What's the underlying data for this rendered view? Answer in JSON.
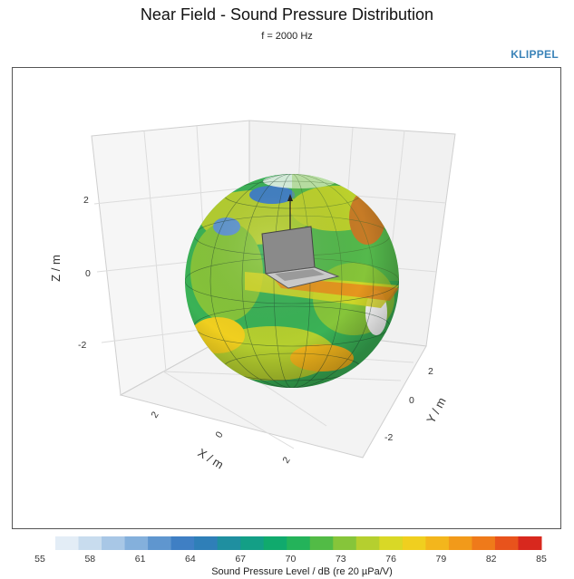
{
  "header": {
    "title": "Near Field - Sound Pressure Distribution",
    "subtitle": "f = 2000 Hz",
    "brand": "KLIPPEL"
  },
  "colors": {
    "scale": [
      "#e3edf6",
      "#c8dcee",
      "#a8c7e6",
      "#84b0dc",
      "#5f96cf",
      "#3f7fc4",
      "#2f7fb8",
      "#1f8fa0",
      "#139f86",
      "#10aa6d",
      "#24b35a",
      "#52bb46",
      "#86c53a",
      "#b5cf2f",
      "#d9d826",
      "#f0cf1f",
      "#f3b61c",
      "#f29a1a",
      "#ef7a1a",
      "#e8531c",
      "#d8281e"
    ],
    "pane": "#f4f4f4",
    "grid": "#d8d8d8"
  },
  "chart_data": {
    "type": "heatmap",
    "title": "Near Field - Sound Pressure Distribution",
    "subtitle": "f = 2000 Hz",
    "xlabel": "X / m",
    "ylabel": "Y / m",
    "zlabel": "Z / m",
    "x_ticks": [
      "2",
      "0",
      "2"
    ],
    "y_ticks": [
      "2",
      "0",
      "-2"
    ],
    "z_ticks": [
      "2",
      "0",
      "-2"
    ],
    "colorbar": {
      "label": "Sound Pressure Level / dB (re 20 µPa/V)",
      "ticks": [
        55,
        58,
        61,
        64,
        67,
        70,
        73,
        76,
        79,
        82,
        85
      ],
      "range": [
        55,
        85
      ]
    }
  }
}
